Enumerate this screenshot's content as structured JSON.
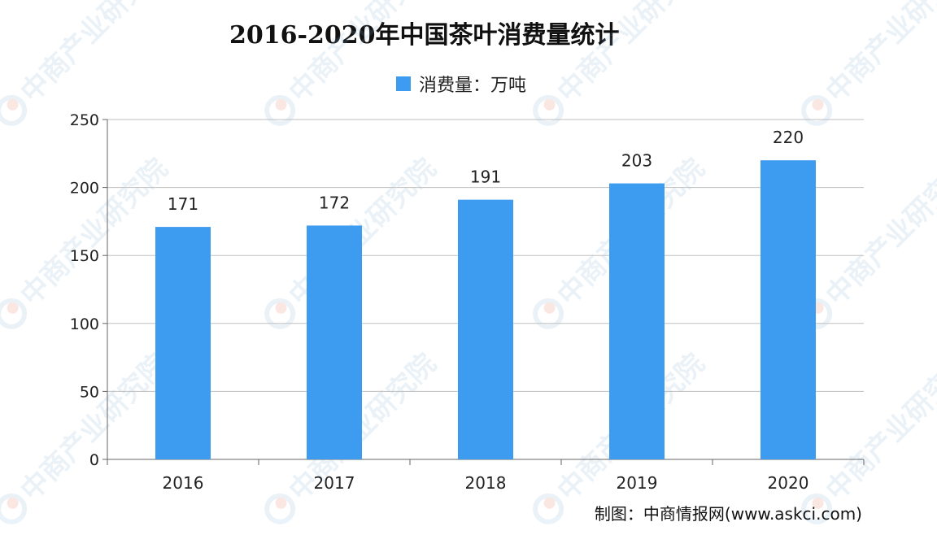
{
  "chart_data": {
    "type": "bar",
    "title": "2016-2020年中国茶叶消费量统计",
    "categories": [
      "2016",
      "2017",
      "2018",
      "2019",
      "2020"
    ],
    "series": [
      {
        "name": "消费量：万吨",
        "values": [
          171,
          172,
          191,
          203,
          220
        ],
        "color": "#3d9bf0"
      }
    ],
    "ylim": [
      0,
      250
    ],
    "yticks": [
      0,
      50,
      100,
      150,
      200,
      250
    ],
    "grid": true,
    "legend_position": "top-center",
    "data_labels": true
  },
  "source_note": "制图：中商情报网(www.askci.com)",
  "watermark": {
    "text": "中商产业研究院",
    "color": "#7fb3d8",
    "accent": "#e8704a"
  }
}
